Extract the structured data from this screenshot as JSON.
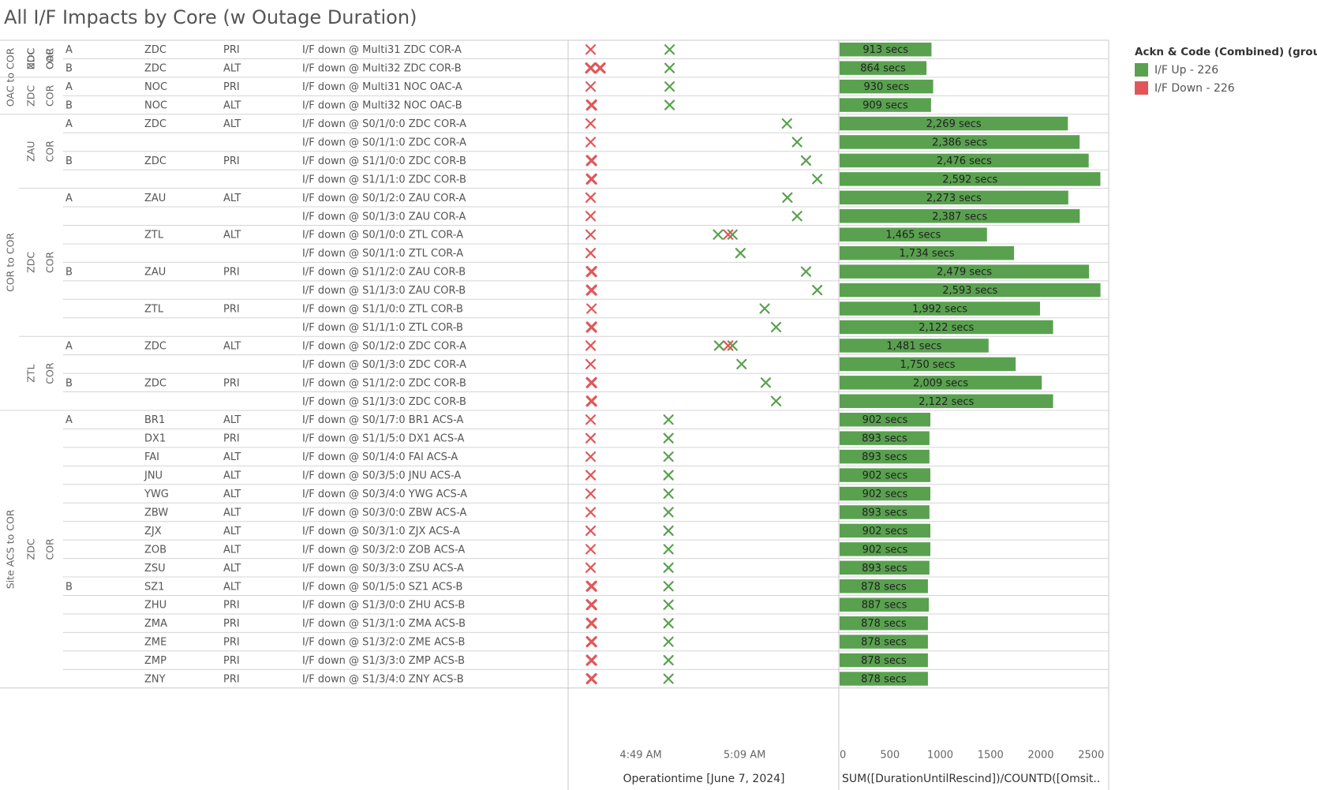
{
  "title": "All I/F Impacts by Core (w Outage Duration)",
  "legend": {
    "title": "Ackn & Code (Combined) (group)",
    "items": [
      {
        "label": "I/F Up - 226",
        "color": "#59a14f"
      },
      {
        "label": "I/F Down - 226",
        "color": "#e15759"
      }
    ]
  },
  "colors": {
    "up": "#59a14f",
    "down": "#e15759",
    "bar": "#59a14f",
    "grid": "#d4d4d4",
    "rule": "#c8c8c8"
  },
  "chart_data": {
    "type": "table",
    "groups": [
      {
        "label": "OAC to COR",
        "rows": [
          0,
          3
        ]
      },
      {
        "label": "COR to COR",
        "rows": [
          4,
          19
        ]
      },
      {
        "label": "Site ACS to COR",
        "rows": [
          20,
          34
        ]
      }
    ],
    "subgroups": [
      {
        "label1": "ZDC",
        "label2": "NOC",
        "rows": [
          0,
          1
        ]
      },
      {
        "label1": "COR",
        "label2": "OAC",
        "rows": [
          0,
          1
        ]
      },
      {
        "label1": "ZDC",
        "label2": "",
        "rows": [
          2,
          3
        ]
      },
      {
        "label1": "COR",
        "label2": "",
        "rows": [
          2,
          3
        ]
      },
      {
        "label1": "ZAU",
        "label2": "COR",
        "rows": [
          4,
          7
        ]
      },
      {
        "label1": "ZDC",
        "label2": "COR",
        "rows": [
          8,
          15
        ]
      },
      {
        "label1": "ZTL",
        "label2": "COR",
        "rows": [
          16,
          19
        ]
      },
      {
        "label1": "ZDC",
        "label2": "COR",
        "rows": [
          20,
          34
        ]
      }
    ],
    "rows": [
      {
        "side": "A",
        "peer": "ZDC",
        "role": "PRI",
        "desc": "I/F down @ Multi31 ZDC COR-A",
        "down": [
          "04:39:20"
        ],
        "up": [
          "04:54:33"
        ],
        "duration": 913
      },
      {
        "side": "B",
        "peer": "ZDC",
        "role": "ALT",
        "desc": "I/F down @ Multi32 ZDC COR-B",
        "down": [
          "04:39:20",
          "04:41:10"
        ],
        "up": [
          "04:54:33"
        ],
        "duration": 864
      },
      {
        "side": "A",
        "peer": "NOC",
        "role": "PRI",
        "desc": "I/F down @ Multi31 NOC OAC-A",
        "down": [
          "04:39:20"
        ],
        "up": [
          "04:54:33"
        ],
        "duration": 930
      },
      {
        "side": "B",
        "peer": "NOC",
        "role": "ALT",
        "desc": "I/F down @ Multi32 NOC OAC-B",
        "down": [
          "04:39:30"
        ],
        "up": [
          "04:54:33"
        ],
        "duration": 909
      },
      {
        "side": "A",
        "peer": "ZDC",
        "role": "ALT",
        "desc": "I/F down @ S0/1/0:0 ZDC COR-A",
        "down": [
          "04:39:20"
        ],
        "up": [
          "05:17:09"
        ],
        "duration": 2269
      },
      {
        "side": "",
        "peer": "",
        "role": "",
        "desc": "I/F down @ S0/1/1:0 ZDC COR-A",
        "down": [
          "04:39:20"
        ],
        "up": [
          "05:19:07"
        ],
        "duration": 2386
      },
      {
        "side": "B",
        "peer": "ZDC",
        "role": "PRI",
        "desc": "I/F down @ S1/1/0:0 ZDC COR-B",
        "down": [
          "04:39:30"
        ],
        "up": [
          "05:20:50"
        ],
        "duration": 2476
      },
      {
        "side": "",
        "peer": "",
        "role": "",
        "desc": "I/F down @ S1/1/1:0 ZDC COR-B",
        "down": [
          "04:39:30"
        ],
        "up": [
          "05:23:00"
        ],
        "duration": 2592
      },
      {
        "side": "A",
        "peer": "ZAU",
        "role": "ALT",
        "desc": "I/F down @ S0/1/2:0 ZAU COR-A",
        "down": [
          "04:39:20"
        ],
        "up": [
          "05:17:15"
        ],
        "duration": 2273
      },
      {
        "side": "",
        "peer": "",
        "role": "",
        "desc": "I/F down @ S0/1/3:0 ZAU COR-A",
        "down": [
          "04:39:20"
        ],
        "up": [
          "05:19:07"
        ],
        "duration": 2387
      },
      {
        "side": "",
        "peer": "ZTL",
        "role": "ALT",
        "desc": "I/F down @ S0/1/0:0 ZTL COR-A",
        "down": [
          "04:39:20",
          "05:05:50"
        ],
        "up": [
          "05:03:53",
          "05:06:40"
        ],
        "duration": 1465
      },
      {
        "side": "",
        "peer": "",
        "role": "",
        "desc": "I/F down @ S0/1/1:0 ZTL COR-A",
        "down": [
          "04:39:20"
        ],
        "up": [
          "05:08:12"
        ],
        "duration": 1734
      },
      {
        "side": "B",
        "peer": "ZAU",
        "role": "PRI",
        "desc": "I/F down @ S1/1/2:0 ZAU COR-B",
        "down": [
          "04:39:30"
        ],
        "up": [
          "05:20:50"
        ],
        "duration": 2479
      },
      {
        "side": "",
        "peer": "",
        "role": "",
        "desc": "I/F down @ S1/1/3:0 ZAU COR-B",
        "down": [
          "04:39:30"
        ],
        "up": [
          "05:23:00"
        ],
        "duration": 2593
      },
      {
        "side": "",
        "peer": "ZTL",
        "role": "PRI",
        "desc": "I/F down @ S1/1/0:0 ZTL COR-B",
        "down": [
          "04:39:30"
        ],
        "up": [
          "05:12:52"
        ],
        "duration": 1992
      },
      {
        "side": "",
        "peer": "",
        "role": "",
        "desc": "I/F down @ S1/1/1:0 ZTL COR-B",
        "down": [
          "04:39:30"
        ],
        "up": [
          "05:15:04"
        ],
        "duration": 2122
      },
      {
        "side": "A",
        "peer": "ZDC",
        "role": "ALT",
        "desc": "I/F down @ S0/1/2:0 ZDC COR-A",
        "down": [
          "04:39:20",
          "05:05:50"
        ],
        "up": [
          "05:04:06",
          "05:06:40"
        ],
        "duration": 1481
      },
      {
        "side": "",
        "peer": "",
        "role": "",
        "desc": "I/F down @ S0/1/3:0 ZDC COR-A",
        "down": [
          "04:39:20"
        ],
        "up": [
          "05:08:25"
        ],
        "duration": 1750
      },
      {
        "side": "B",
        "peer": "ZDC",
        "role": "PRI",
        "desc": "I/F down @ S1/1/2:0 ZDC COR-B",
        "down": [
          "04:39:30"
        ],
        "up": [
          "05:13:05"
        ],
        "duration": 2009
      },
      {
        "side": "",
        "peer": "",
        "role": "",
        "desc": "I/F down @ S1/1/3:0 ZDC COR-B",
        "down": [
          "04:39:30"
        ],
        "up": [
          "05:15:04"
        ],
        "duration": 2122
      },
      {
        "side": "A",
        "peer": "BR1",
        "role": "ALT",
        "desc": "I/F down @ S0/1/7:0 BR1 ACS-A",
        "down": [
          "04:39:20"
        ],
        "up": [
          "04:54:20"
        ],
        "duration": 902
      },
      {
        "side": "",
        "peer": "DX1",
        "role": "PRI",
        "desc": "I/F down @ S1/1/5:0 DX1 ACS-A",
        "down": [
          "04:39:20"
        ],
        "up": [
          "04:54:20"
        ],
        "duration": 893
      },
      {
        "side": "",
        "peer": "FAI",
        "role": "ALT",
        "desc": "I/F down @ S0/1/4:0 FAI ACS-A",
        "down": [
          "04:39:20"
        ],
        "up": [
          "04:54:20"
        ],
        "duration": 893
      },
      {
        "side": "",
        "peer": "JNU",
        "role": "ALT",
        "desc": "I/F down @ S0/3/5:0 JNU ACS-A",
        "down": [
          "04:39:20"
        ],
        "up": [
          "04:54:20"
        ],
        "duration": 902
      },
      {
        "side": "",
        "peer": "YWG",
        "role": "ALT",
        "desc": "I/F down @ S0/3/4:0 YWG ACS-A",
        "down": [
          "04:39:20"
        ],
        "up": [
          "04:54:20"
        ],
        "duration": 902
      },
      {
        "side": "",
        "peer": "ZBW",
        "role": "ALT",
        "desc": "I/F down @ S0/3/0:0 ZBW ACS-A",
        "down": [
          "04:39:20"
        ],
        "up": [
          "04:54:20"
        ],
        "duration": 893
      },
      {
        "side": "",
        "peer": "ZJX",
        "role": "ALT",
        "desc": "I/F down @ S0/3/1:0 ZJX ACS-A",
        "down": [
          "04:39:20"
        ],
        "up": [
          "04:54:20"
        ],
        "duration": 902
      },
      {
        "side": "",
        "peer": "ZOB",
        "role": "ALT",
        "desc": "I/F down @ S0/3/2:0 ZOB ACS-A",
        "down": [
          "04:39:20"
        ],
        "up": [
          "04:54:20"
        ],
        "duration": 902
      },
      {
        "side": "",
        "peer": "ZSU",
        "role": "ALT",
        "desc": "I/F down @ S0/3/3:0 ZSU ACS-A",
        "down": [
          "04:39:20"
        ],
        "up": [
          "04:54:20"
        ],
        "duration": 893
      },
      {
        "side": "B",
        "peer": "SZ1",
        "role": "ALT",
        "desc": "I/F down @ S0/1/5:0 SZ1 ACS-B",
        "down": [
          "04:39:30"
        ],
        "up": [
          "04:54:20"
        ],
        "duration": 878
      },
      {
        "side": "",
        "peer": "ZHU",
        "role": "PRI",
        "desc": "I/F down @ S1/3/0:0 ZHU ACS-B",
        "down": [
          "04:39:30"
        ],
        "up": [
          "04:54:20"
        ],
        "duration": 887
      },
      {
        "side": "",
        "peer": "ZMA",
        "role": "PRI",
        "desc": "I/F down @ S1/3/1:0 ZMA ACS-B",
        "down": [
          "04:39:30"
        ],
        "up": [
          "04:54:20"
        ],
        "duration": 878
      },
      {
        "side": "",
        "peer": "ZME",
        "role": "PRI",
        "desc": "I/F down @ S1/3/2:0 ZME ACS-B",
        "down": [
          "04:39:30"
        ],
        "up": [
          "04:54:20"
        ],
        "duration": 878
      },
      {
        "side": "",
        "peer": "ZMP",
        "role": "PRI",
        "desc": "I/F down @ S1/3/3:0 ZMP ACS-B",
        "down": [
          "04:39:30"
        ],
        "up": [
          "04:54:20"
        ],
        "duration": 878
      },
      {
        "side": "",
        "peer": "ZNY",
        "role": "PRI",
        "desc": "I/F down @ S1/3/4:0 ZNY ACS-B",
        "down": [
          "04:39:30"
        ],
        "up": [
          "04:54:20"
        ],
        "duration": 878
      }
    ],
    "time_axis": {
      "title": "Operationtime [June 7, 2024]",
      "ticks": [
        "4:49 AM",
        "5:09 AM"
      ],
      "tick_values": [
        "04:49:00",
        "05:09:00"
      ],
      "range": [
        "04:35:00",
        "05:27:00"
      ]
    },
    "duration_axis": {
      "title": "SUM([DurationUntilRescind])/COUNTD([Omsit..",
      "ticks": [
        0,
        500,
        1000,
        1500,
        2000,
        2500
      ],
      "range": [
        0,
        2700
      ],
      "unit_label": "secs"
    }
  }
}
